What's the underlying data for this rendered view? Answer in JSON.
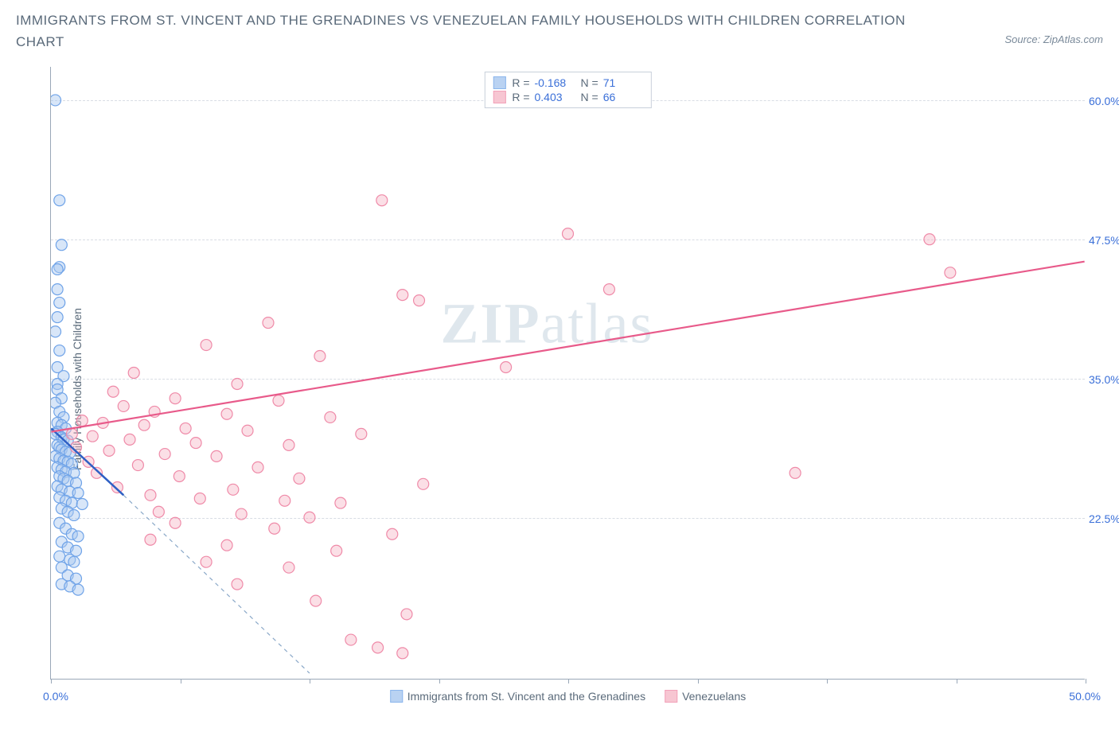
{
  "title": "IMMIGRANTS FROM ST. VINCENT AND THE GRENADINES VS VENEZUELAN FAMILY HOUSEHOLDS WITH CHILDREN CORRELATION CHART",
  "source": "Source: ZipAtlas.com",
  "watermark_left": "ZIP",
  "watermark_right": "atlas",
  "chart": {
    "type": "scatter",
    "y_label": "Family Households with Children",
    "xlim": [
      0,
      50
    ],
    "ylim": [
      8,
      63
    ],
    "x_tick_positions": [
      0,
      6.25,
      12.5,
      18.75,
      25,
      31.25,
      37.5,
      43.75,
      50
    ],
    "x_label_min": "0.0%",
    "x_label_max": "50.0%",
    "y_gridlines": [
      22.5,
      35.0,
      47.5,
      60.0
    ],
    "y_tick_labels": [
      "22.5%",
      "35.0%",
      "47.5%",
      "60.0%"
    ],
    "background_color": "#ffffff",
    "grid_color": "#d8dde4",
    "axis_color": "#9aa8b8",
    "tick_label_color": "#3a6fd8",
    "series": [
      {
        "name": "Immigrants from St. Vincent and the Grenadines",
        "color_fill": "#a8c8f0",
        "color_stroke": "#6fa3e8",
        "fill_opacity": 0.45,
        "marker_radius": 7,
        "r_value": "-0.168",
        "n_value": "71",
        "regression": {
          "x1": 0,
          "y1": 30.5,
          "x2": 3.5,
          "y2": 24.5,
          "solid": true
        },
        "extrapolation": {
          "x1": 3.5,
          "y1": 24.5,
          "x2": 12.5,
          "y2": 8.5
        },
        "points": [
          [
            0.2,
            60.0
          ],
          [
            0.4,
            51.0
          ],
          [
            0.5,
            47.0
          ],
          [
            0.4,
            45.0
          ],
          [
            0.3,
            44.8
          ],
          [
            0.3,
            43.0
          ],
          [
            0.4,
            41.8
          ],
          [
            0.3,
            40.5
          ],
          [
            0.2,
            39.2
          ],
          [
            0.4,
            37.5
          ],
          [
            0.3,
            36.0
          ],
          [
            0.6,
            35.2
          ],
          [
            0.3,
            34.5
          ],
          [
            0.3,
            34.0
          ],
          [
            0.5,
            33.2
          ],
          [
            0.2,
            32.8
          ],
          [
            0.4,
            32.0
          ],
          [
            0.6,
            31.5
          ],
          [
            0.3,
            31.0
          ],
          [
            0.5,
            30.8
          ],
          [
            0.7,
            30.5
          ],
          [
            0.3,
            30.2
          ],
          [
            0.2,
            30.0
          ],
          [
            0.5,
            29.7
          ],
          [
            0.6,
            29.5
          ],
          [
            0.8,
            29.4
          ],
          [
            0.3,
            29.0
          ],
          [
            0.4,
            28.8
          ],
          [
            0.5,
            28.6
          ],
          [
            0.7,
            28.4
          ],
          [
            0.9,
            28.3
          ],
          [
            0.2,
            28.0
          ],
          [
            0.4,
            27.8
          ],
          [
            0.6,
            27.6
          ],
          [
            0.8,
            27.5
          ],
          [
            1.0,
            27.3
          ],
          [
            0.3,
            27.0
          ],
          [
            0.5,
            26.8
          ],
          [
            0.7,
            26.6
          ],
          [
            1.1,
            26.5
          ],
          [
            0.4,
            26.2
          ],
          [
            0.6,
            26.0
          ],
          [
            0.8,
            25.8
          ],
          [
            1.2,
            25.6
          ],
          [
            0.3,
            25.3
          ],
          [
            0.5,
            25.0
          ],
          [
            0.9,
            24.8
          ],
          [
            1.3,
            24.7
          ],
          [
            0.4,
            24.3
          ],
          [
            0.7,
            24.0
          ],
          [
            1.0,
            23.8
          ],
          [
            1.5,
            23.7
          ],
          [
            0.5,
            23.3
          ],
          [
            0.8,
            23.0
          ],
          [
            1.1,
            22.7
          ],
          [
            0.4,
            22.0
          ],
          [
            0.7,
            21.5
          ],
          [
            1.0,
            21.0
          ],
          [
            1.3,
            20.8
          ],
          [
            0.5,
            20.3
          ],
          [
            0.8,
            19.8
          ],
          [
            1.2,
            19.5
          ],
          [
            0.4,
            19.0
          ],
          [
            0.9,
            18.7
          ],
          [
            1.1,
            18.5
          ],
          [
            0.5,
            18.0
          ],
          [
            0.8,
            17.3
          ],
          [
            1.2,
            17.0
          ],
          [
            0.5,
            16.5
          ],
          [
            0.9,
            16.3
          ],
          [
            1.3,
            16.0
          ]
        ]
      },
      {
        "name": "Venezuelans",
        "color_fill": "#f6b8c8",
        "color_stroke": "#ef8aa8",
        "fill_opacity": 0.45,
        "marker_radius": 7,
        "r_value": "0.403",
        "n_value": "66",
        "regression": {
          "x1": 0,
          "y1": 30.2,
          "x2": 50,
          "y2": 45.5,
          "solid": true
        },
        "line_color": "#e85a8a",
        "points": [
          [
            16.0,
            51.0
          ],
          [
            25.0,
            48.0
          ],
          [
            42.5,
            47.5
          ],
          [
            43.5,
            44.5
          ],
          [
            27.0,
            43.0
          ],
          [
            17.0,
            42.5
          ],
          [
            17.8,
            42.0
          ],
          [
            10.5,
            40.0
          ],
          [
            7.5,
            38.0
          ],
          [
            13.0,
            37.0
          ],
          [
            22.0,
            36.0
          ],
          [
            4.0,
            35.5
          ],
          [
            9.0,
            34.5
          ],
          [
            3.0,
            33.8
          ],
          [
            6.0,
            33.2
          ],
          [
            11.0,
            33.0
          ],
          [
            3.5,
            32.5
          ],
          [
            5.0,
            32.0
          ],
          [
            8.5,
            31.8
          ],
          [
            13.5,
            31.5
          ],
          [
            1.5,
            31.2
          ],
          [
            2.5,
            31.0
          ],
          [
            4.5,
            30.8
          ],
          [
            6.5,
            30.5
          ],
          [
            9.5,
            30.3
          ],
          [
            15.0,
            30.0
          ],
          [
            1.0,
            30.0
          ],
          [
            2.0,
            29.8
          ],
          [
            3.8,
            29.5
          ],
          [
            7.0,
            29.2
          ],
          [
            11.5,
            29.0
          ],
          [
            1.2,
            28.8
          ],
          [
            2.8,
            28.5
          ],
          [
            5.5,
            28.2
          ],
          [
            8.0,
            28.0
          ],
          [
            1.8,
            27.5
          ],
          [
            4.2,
            27.2
          ],
          [
            10.0,
            27.0
          ],
          [
            36.0,
            26.5
          ],
          [
            2.2,
            26.5
          ],
          [
            6.2,
            26.2
          ],
          [
            12.0,
            26.0
          ],
          [
            18.0,
            25.5
          ],
          [
            3.2,
            25.2
          ],
          [
            8.8,
            25.0
          ],
          [
            4.8,
            24.5
          ],
          [
            7.2,
            24.2
          ],
          [
            11.3,
            24.0
          ],
          [
            14.0,
            23.8
          ],
          [
            5.2,
            23.0
          ],
          [
            9.2,
            22.8
          ],
          [
            12.5,
            22.5
          ],
          [
            6.0,
            22.0
          ],
          [
            10.8,
            21.5
          ],
          [
            16.5,
            21.0
          ],
          [
            4.8,
            20.5
          ],
          [
            8.5,
            20.0
          ],
          [
            13.8,
            19.5
          ],
          [
            7.5,
            18.5
          ],
          [
            11.5,
            18.0
          ],
          [
            9.0,
            16.5
          ],
          [
            12.8,
            15.0
          ],
          [
            17.2,
            13.8
          ],
          [
            14.5,
            11.5
          ],
          [
            15.8,
            10.8
          ],
          [
            17.0,
            10.3
          ]
        ]
      }
    ]
  },
  "legend_top": {
    "r_label": "R =",
    "n_label": "N ="
  }
}
